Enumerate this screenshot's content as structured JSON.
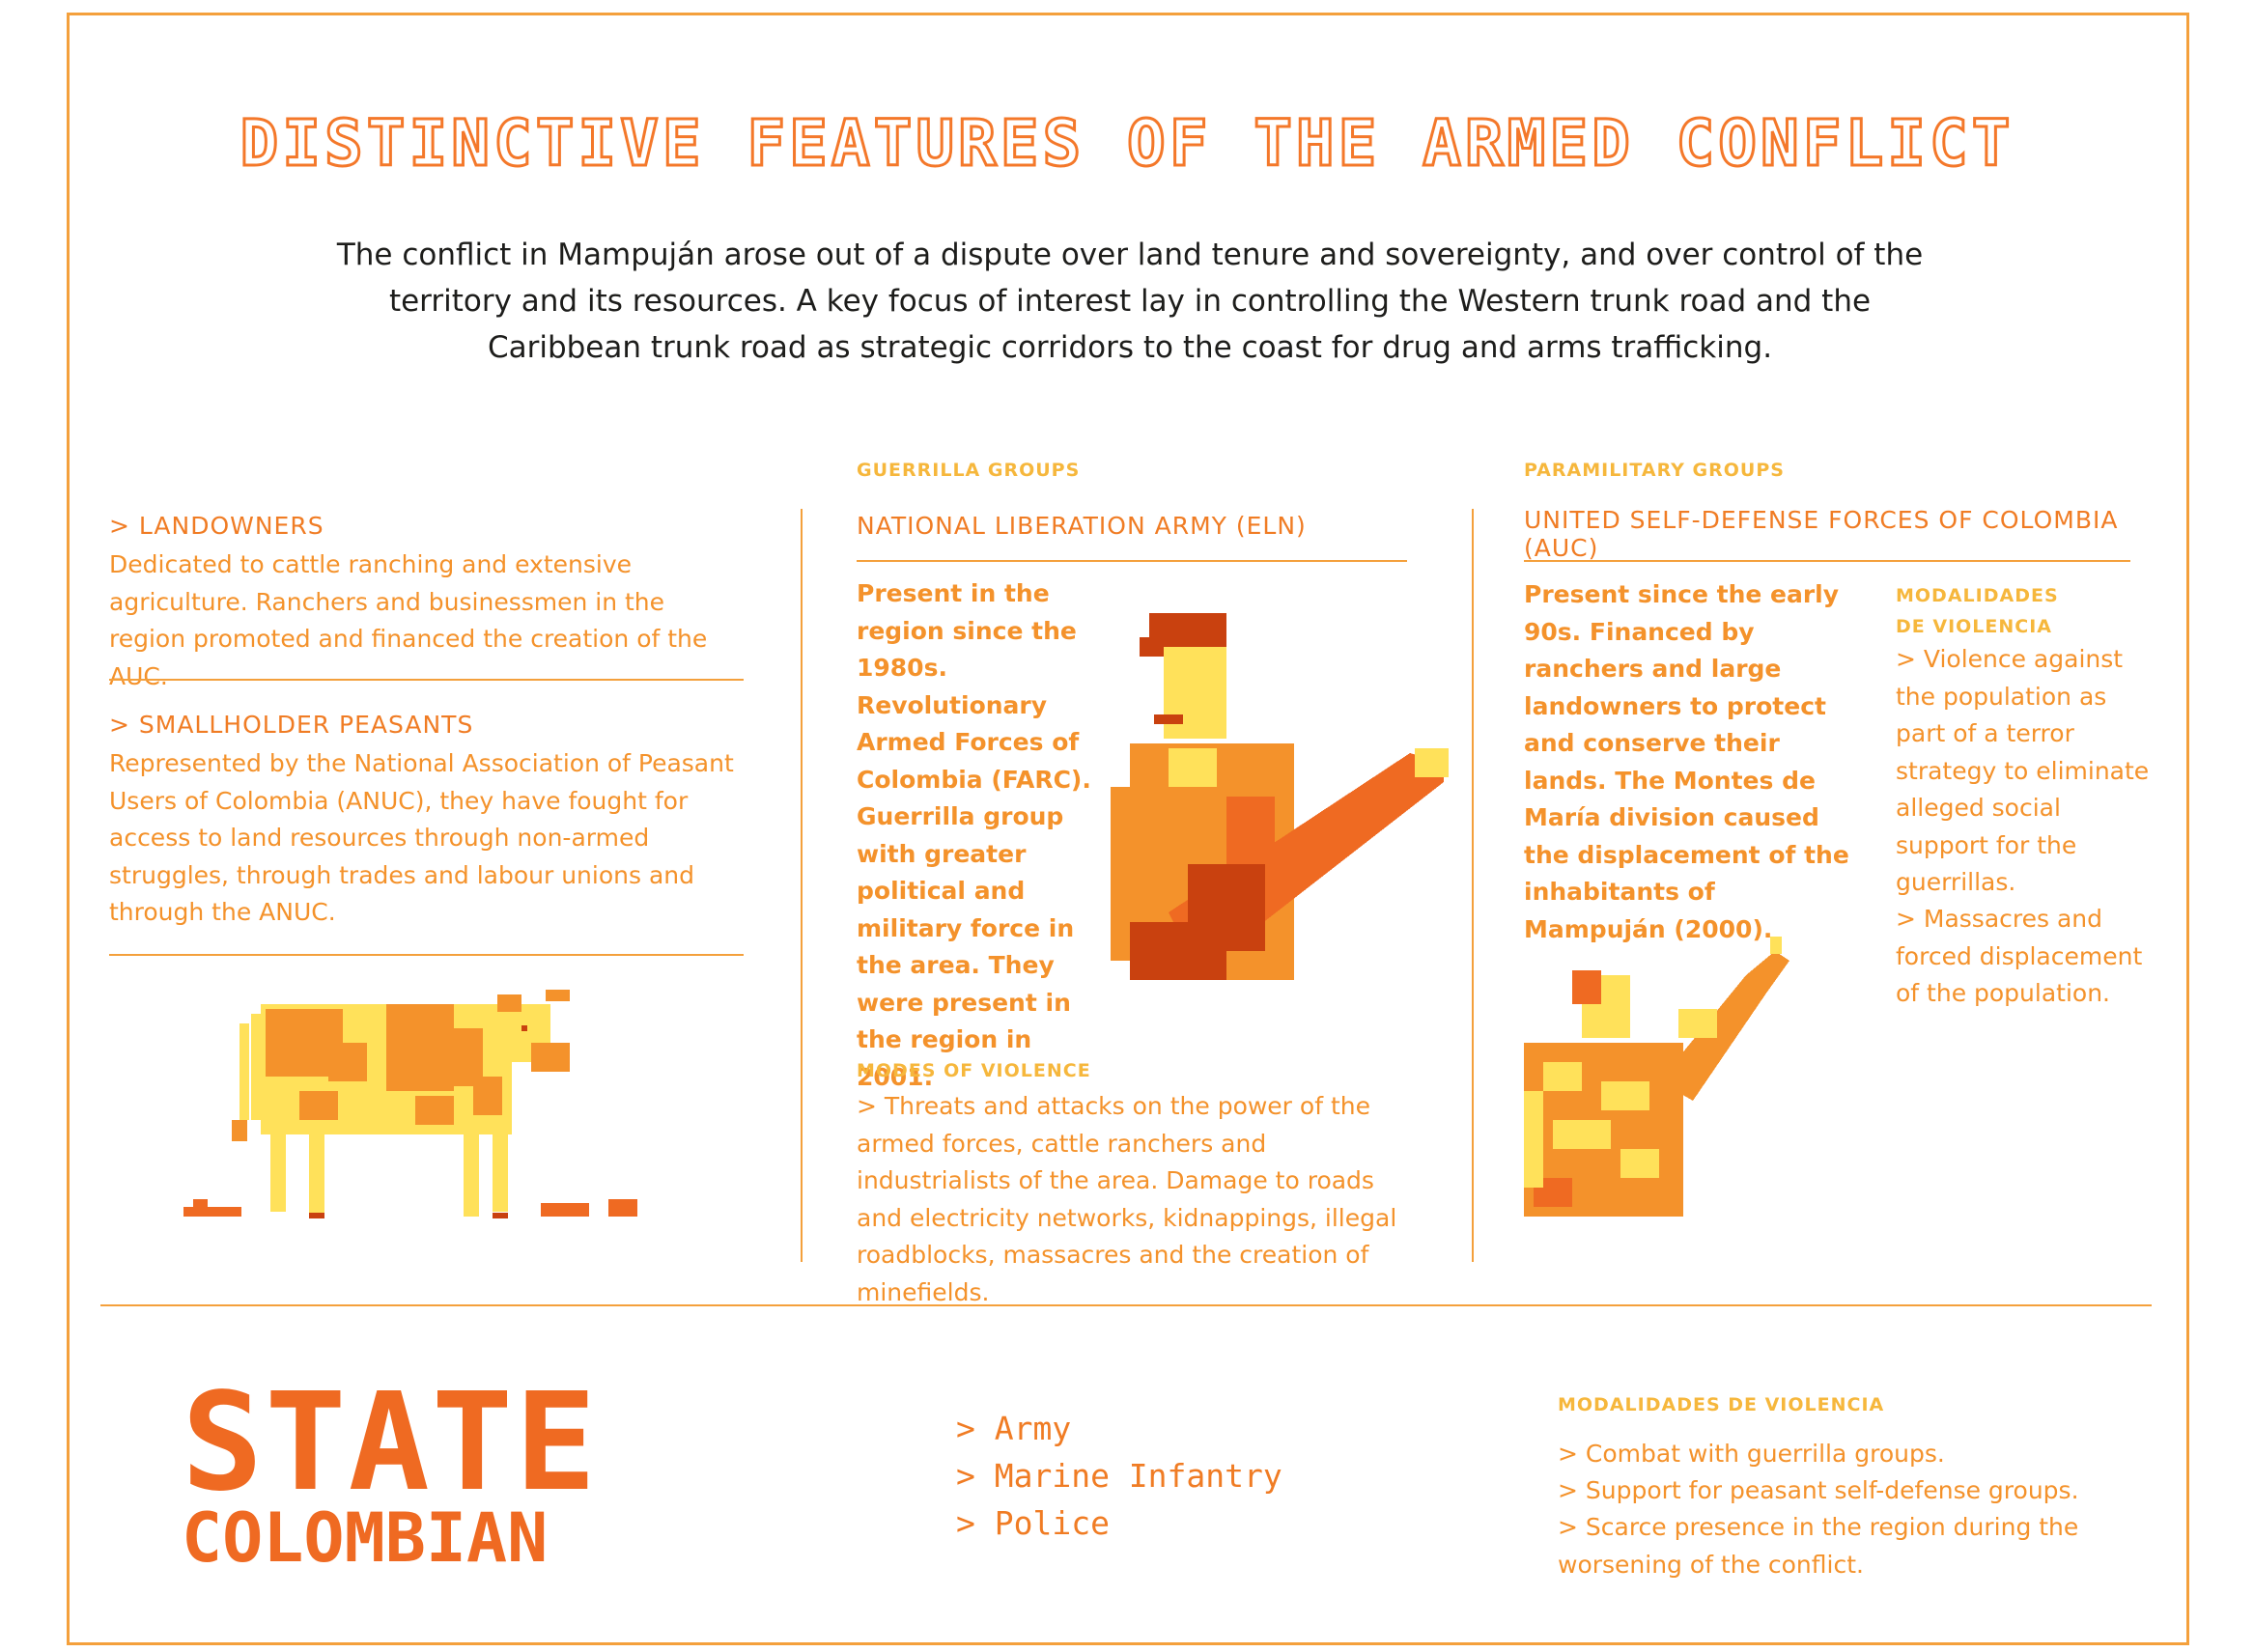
{
  "title": "DISTINCTIVE FEATURES OF THE ARMED CONFLICT",
  "intro": "The conflict in Mampuján arose out of a dispute over land tenure and sovereignty, and over control of the territory and its resources. A key focus of interest lay in controlling the Western trunk road and the Caribbean trunk road as strategic corridors to the coast for drug and arms trafficking.",
  "col1": {
    "landowners_title": "> LANDOWNERS",
    "landowners_text": "Dedicated to cattle ranching and extensive agriculture. Ranchers and businessmen in the region promoted and financed the creation of the AUC.",
    "peasants_title": "> SMALLHOLDER PEASANTS",
    "peasants_text": "Represented by the National Association of Peasant Users of Colombia (ANUC), they have fought for access to land resources through non-armed struggles, through trades and labour unions and through the ANUC."
  },
  "col2": {
    "group_label": "GUERRILLA GROUPS",
    "heading": "NATIONAL LIBERATION ARMY (ELN)",
    "text": "Present in the region since the 1980s. Revolutionary Armed Forces of Colombia (FARC). Guerrilla group with greater political and military force in the area. They were present in the region in 2001.",
    "modes_label": "MODES OF VIOLENCE",
    "modes_text": "> Threats and attacks on the power of the armed forces, cattle ranchers and industrialists of the area. Damage to roads and electricity networks, kidnappings, illegal roadblocks, massacres and the creation of minefields."
  },
  "col3": {
    "group_label": "PARAMILITARY GROUPS",
    "heading": "UNITED SELF-DEFENSE FORCES OF COLOMBIA (AUC)",
    "text": "Present since the early 90s. Financed by ranchers and large landowners to protect and conserve their lands. The Montes de María division caused the displacement of the inhabitants of Mampuján (2000).",
    "modes_label_1": "MODALIDADES",
    "modes_label_2": "DE VIOLENCIA",
    "modes_text_1": "> Violence against the population as part of a terror strategy to eliminate alleged social support for the guerrillas.",
    "modes_text_2": "> Massacres and forced displacement of the population."
  },
  "state": {
    "big": "STATE",
    "small": "COLOMBIAN",
    "forces": [
      "> Army",
      "> Marine Infantry",
      "> Police"
    ],
    "modes_label": "MODALIDADES DE VIOLENCIA",
    "modes": [
      "> Combat with guerrilla groups.",
      "> Support for peasant self-defense groups.",
      "> Scarce presence in the region during the worsening of the conflict."
    ]
  },
  "colors": {
    "orange": "#f4922b",
    "dark_orange": "#ef6a22",
    "yellow": "#ffe15a",
    "rust": "#c9410f",
    "text_dark": "#1d1d1b"
  },
  "icons": [
    "cow-illustration",
    "guerrilla-soldier-illustration",
    "paramilitary-soldier-illustration"
  ]
}
